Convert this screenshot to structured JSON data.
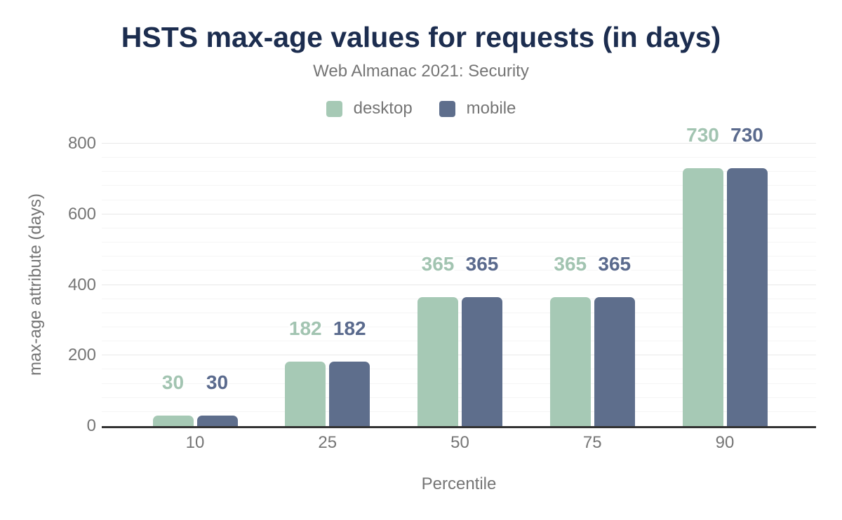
{
  "colors": {
    "title": "#1c2d4f",
    "text": "#757575",
    "axis-line": "#333333",
    "grid-major": "#e8e8e8",
    "grid-minor": "#f5f5f5",
    "background": "#ffffff"
  },
  "chart_data": {
    "type": "bar",
    "title": "HSTS max-age values for requests (in days)",
    "subtitle": "Web Almanac 2021: Security",
    "xlabel": "Percentile",
    "ylabel": "max-age attribute (days)",
    "categories": [
      "10",
      "25",
      "50",
      "75",
      "90"
    ],
    "series": [
      {
        "name": "desktop",
        "color": "#a6c9b5",
        "label_color": "#a2c4b1",
        "values": [
          30,
          182,
          365,
          365,
          730
        ]
      },
      {
        "name": "mobile",
        "color": "#5e6e8c",
        "label_color": "#5a6a8d",
        "values": [
          30,
          182,
          365,
          365,
          730
        ]
      }
    ],
    "ylim": [
      0,
      800
    ],
    "yticks": [
      0,
      200,
      400,
      600,
      800
    ],
    "y_minor_step": 40,
    "grid": "horizontal-major-and-minor",
    "legend_position": "top",
    "data_labels": "above-bars"
  }
}
